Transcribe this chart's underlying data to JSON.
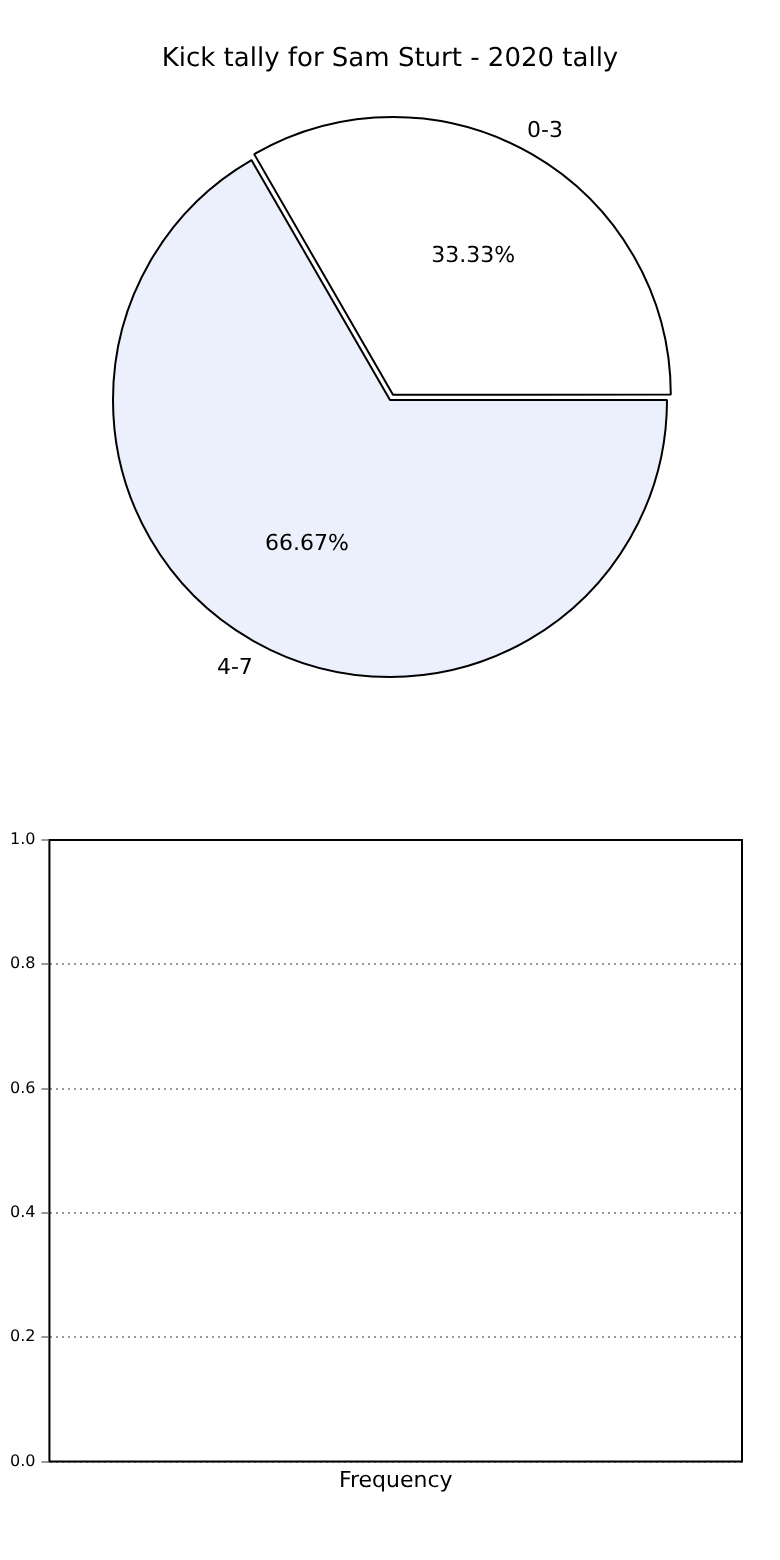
{
  "chart_data": [
    {
      "type": "pie",
      "title": "Kick tally for Sam Sturt - 2020 tally",
      "categories": [
        "0-3",
        "4-7"
      ],
      "values": [
        33.33,
        66.67
      ],
      "colors": [
        "#ffffff",
        "#ebf0fc"
      ],
      "value_labels": [
        "33.33%",
        "66.67%"
      ],
      "legend": false
    },
    {
      "type": "bar",
      "categories": [
        "Frequency"
      ],
      "values": [
        0
      ],
      "ylim": [
        0,
        1
      ],
      "yticks": [
        {
          "value": 0,
          "label": "0.0"
        },
        {
          "value": 0.2,
          "label": "0.2"
        },
        {
          "value": 0.4,
          "label": "0.4"
        },
        {
          "value": 0.6,
          "label": "0.6"
        },
        {
          "value": 0.8,
          "label": "0.8"
        },
        {
          "value": 1,
          "label": "1.0"
        }
      ],
      "grid": "y",
      "legend": false
    }
  ]
}
